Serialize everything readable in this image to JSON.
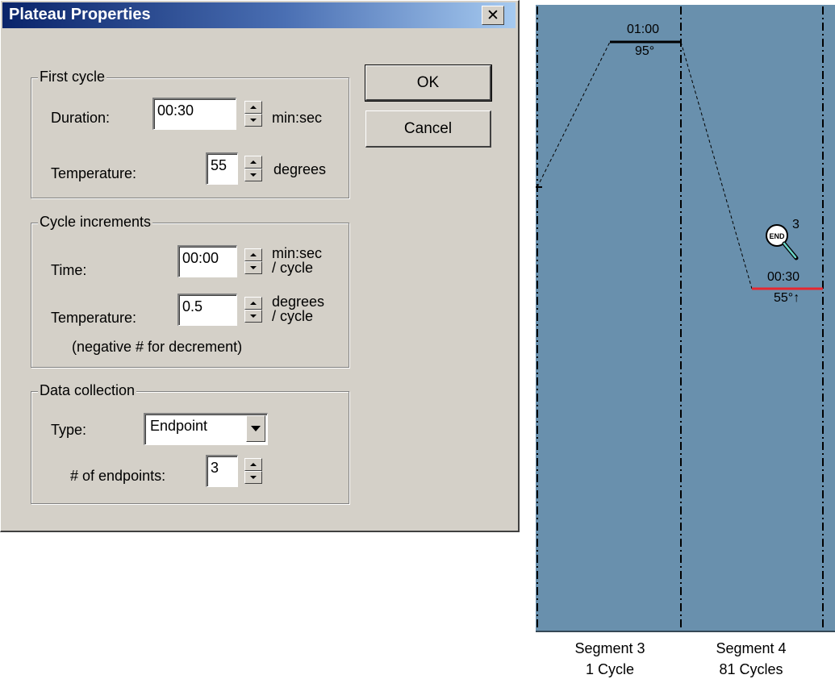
{
  "dialog": {
    "title": "Plateau Properties",
    "close_glyph": "✕",
    "buttons": {
      "ok": "OK",
      "cancel": "Cancel"
    },
    "first_cycle": {
      "legend": "First cycle",
      "duration_label": "Duration:",
      "duration_value": "00:30",
      "duration_unit": "min:sec",
      "temperature_label": "Temperature:",
      "temperature_value": "55",
      "temperature_unit": "degrees"
    },
    "cycle_increments": {
      "legend": "Cycle increments",
      "time_label": "Time:",
      "time_value": "00:00",
      "time_unit_1": "min:sec",
      "time_unit_2": "/ cycle",
      "temperature_label": "Temperature:",
      "temperature_value": "0.5",
      "temperature_unit_1": "degrees",
      "temperature_unit_2": "/ cycle",
      "note": "(negative # for decrement)"
    },
    "data_collection": {
      "legend": "Data collection",
      "type_label": "Type:",
      "type_value": "Endpoint",
      "endpoints_label": "# of endpoints:",
      "endpoints_value": "3"
    }
  },
  "protocol_chart": {
    "background_color": "#6990ad",
    "segment3": {
      "time": "01:00",
      "temp": "95°",
      "title": "Segment 3",
      "cycles": "1 Cycle"
    },
    "segment4": {
      "time": "00:30",
      "temp": "55°↑",
      "title": "Segment 4",
      "cycles": "81 Cycles",
      "highlight_color": "#e8262e"
    },
    "endpoint_marker": {
      "icon": "end-magnifier-icon",
      "text": "END",
      "count": "3"
    }
  }
}
